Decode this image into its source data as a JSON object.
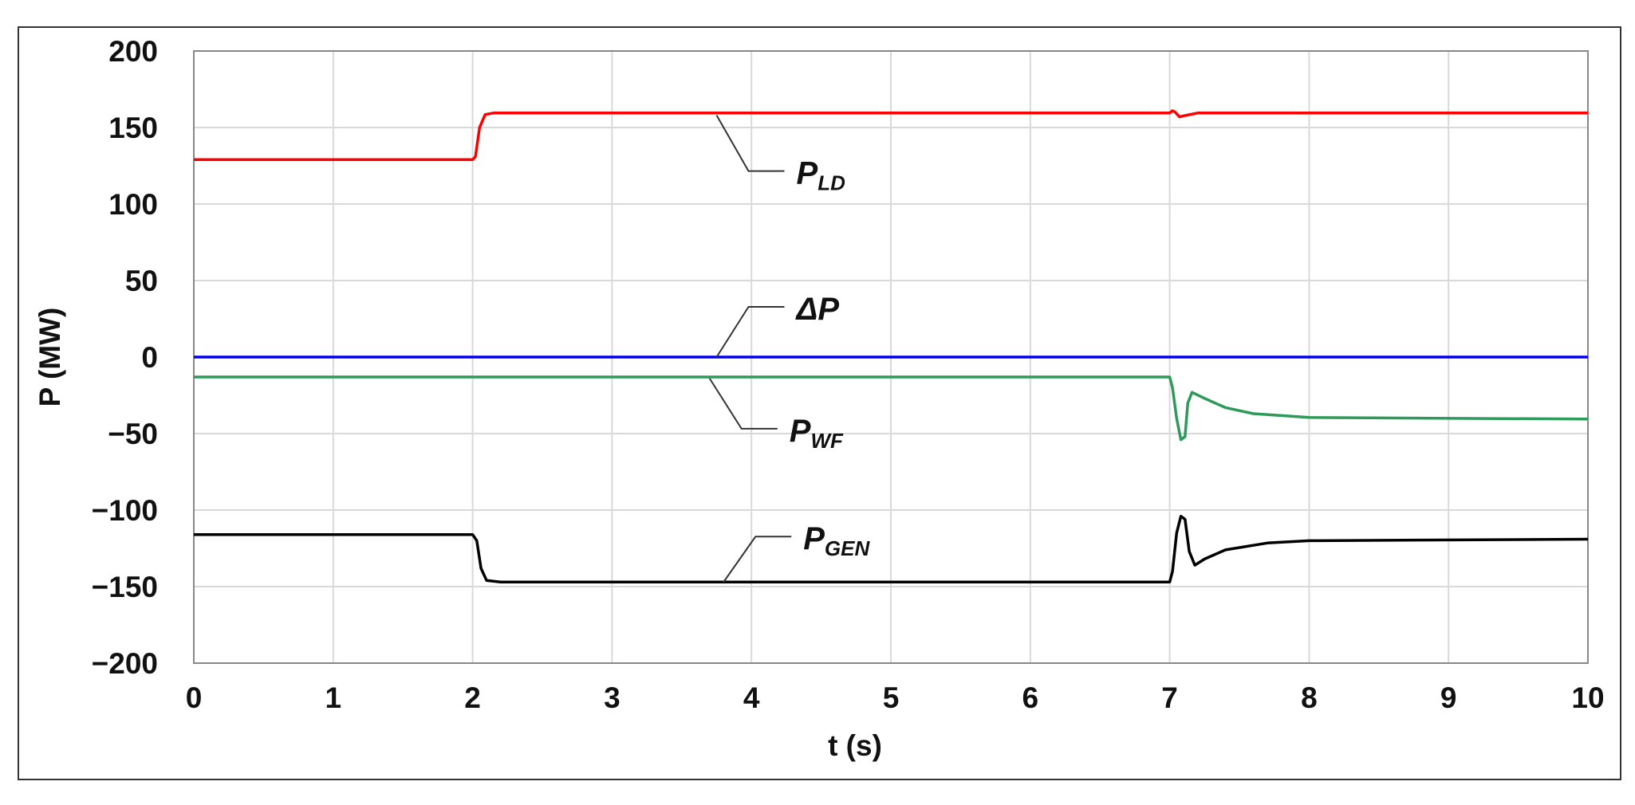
{
  "chart_data": {
    "type": "line",
    "xlabel": "t (s)",
    "ylabel": "P (MW)",
    "xlim": [
      0,
      10
    ],
    "ylim": [
      -200,
      200
    ],
    "x_ticks": [
      "0",
      "1",
      "2",
      "3",
      "4",
      "5",
      "6",
      "7",
      "8",
      "9",
      "10"
    ],
    "y_ticks": [
      "200",
      "150",
      "100",
      "50",
      "0",
      "−50",
      "−100",
      "−150",
      "−200"
    ],
    "grid": true,
    "series": [
      {
        "name": "P",
        "sub": "LD",
        "color": "#ff0000",
        "points": [
          [
            0,
            129
          ],
          [
            2.0,
            129
          ],
          [
            2.02,
            131
          ],
          [
            2.05,
            150
          ],
          [
            2.09,
            158.5
          ],
          [
            2.15,
            159.5
          ],
          [
            3,
            159.5
          ],
          [
            7.0,
            159.5
          ],
          [
            7.02,
            161
          ],
          [
            7.04,
            160
          ],
          [
            7.07,
            157
          ],
          [
            7.12,
            158
          ],
          [
            7.2,
            159.5
          ],
          [
            10,
            159.5
          ]
        ],
        "label_anchor": [
          3.75,
          158
        ]
      },
      {
        "name": "ΔP",
        "sub": "",
        "color": "#0000ee",
        "points": [
          [
            0,
            0
          ],
          [
            10,
            0
          ]
        ],
        "label_anchor": [
          3.75,
          0
        ]
      },
      {
        "name": "P",
        "sub": "WF",
        "color": "#2e9a5a",
        "points": [
          [
            0,
            -13
          ],
          [
            7.0,
            -13
          ],
          [
            7.02,
            -20
          ],
          [
            7.05,
            -40
          ],
          [
            7.08,
            -54
          ],
          [
            7.11,
            -52
          ],
          [
            7.13,
            -30
          ],
          [
            7.16,
            -23
          ],
          [
            7.25,
            -27
          ],
          [
            7.4,
            -33
          ],
          [
            7.6,
            -37
          ],
          [
            8.0,
            -39.5
          ],
          [
            10,
            -40.5
          ]
        ],
        "label_anchor": [
          3.7,
          -14
        ]
      },
      {
        "name": "P",
        "sub": "GEN",
        "color": "#000000",
        "points": [
          [
            0,
            -116
          ],
          [
            2.0,
            -116
          ],
          [
            2.03,
            -120
          ],
          [
            2.06,
            -138
          ],
          [
            2.1,
            -146
          ],
          [
            2.2,
            -147
          ],
          [
            7.0,
            -147
          ],
          [
            7.02,
            -140
          ],
          [
            7.05,
            -115
          ],
          [
            7.08,
            -104
          ],
          [
            7.11,
            -106
          ],
          [
            7.14,
            -127
          ],
          [
            7.18,
            -136
          ],
          [
            7.25,
            -132
          ],
          [
            7.4,
            -126
          ],
          [
            7.7,
            -121.5
          ],
          [
            8,
            -120
          ],
          [
            10,
            -119
          ]
        ],
        "label_anchor": [
          3.8,
          -147
        ]
      }
    ]
  }
}
